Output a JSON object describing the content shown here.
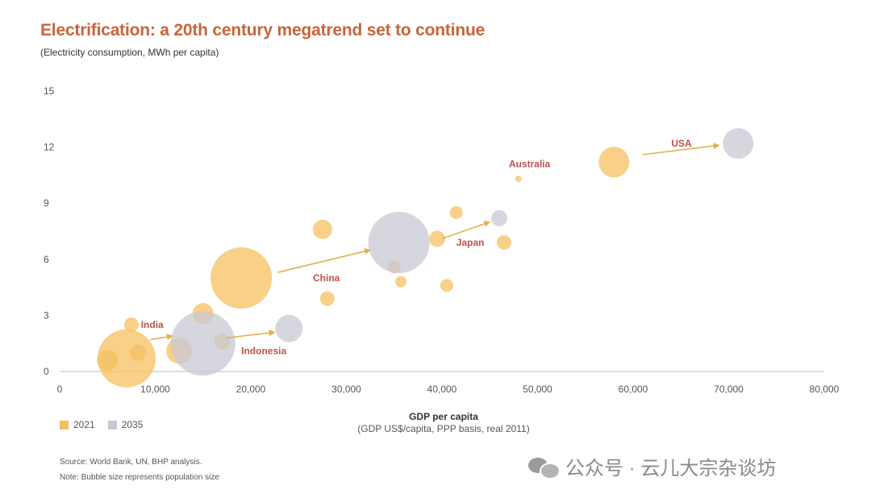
{
  "title": "Electrification: a 20th century megatrend set to continue",
  "subtitle": "(Electricity consumption, MWh per capita)",
  "x_axis_title": "GDP per capita",
  "x_axis_subtitle": "(GDP US$/capita, PPP basis, real 2011)",
  "legend": [
    {
      "label": "2021",
      "color": "#f5c060"
    },
    {
      "label": "2035",
      "color": "#c8c8d4"
    }
  ],
  "source": "Source: World Bank, UN, BHP analysis.",
  "note": "Note: Bubble size represents population size",
  "watermark": "公众号 · 云儿大宗杂谈坊",
  "colors": {
    "title": "#c8643a",
    "label": "#c0504d",
    "bubble_2021": "#f5c060",
    "bubble_2035": "#c8c8d4",
    "arrow": "#e3b14a",
    "axis": "#bbbbbb",
    "text": "#333333"
  },
  "chart_data": {
    "type": "scatter",
    "title": "Electrification: a 20th century megatrend set to continue",
    "ylabel": "(Electricity consumption, MWh per capita)",
    "xlabel": "GDP per capita",
    "xlim": [
      0,
      80000
    ],
    "ylim": [
      0,
      15
    ],
    "xticks": [
      0,
      10000,
      20000,
      30000,
      40000,
      50000,
      60000,
      70000,
      80000
    ],
    "xtick_labels": [
      "0",
      "10,000",
      "20,000",
      "30,000",
      "40,000",
      "50,000",
      "60,000",
      "70,000",
      "80,000"
    ],
    "yticks": [
      0,
      3,
      6,
      9,
      12,
      15
    ],
    "ytick_labels": [
      "0",
      "3",
      "6",
      "9",
      "12",
      "15"
    ],
    "grid": false,
    "size_meaning": "population (relative)",
    "series": [
      {
        "name": "2021",
        "color": "#f5c060",
        "points": [
          {
            "x": 7000,
            "y": 0.7,
            "size": 36
          },
          {
            "x": 5000,
            "y": 0.6,
            "size": 13
          },
          {
            "x": 7500,
            "y": 2.5,
            "size": 9
          },
          {
            "x": 8200,
            "y": 1.0,
            "size": 10
          },
          {
            "x": 12500,
            "y": 1.1,
            "size": 16
          },
          {
            "x": 15000,
            "y": 3.1,
            "size": 13
          },
          {
            "x": 17000,
            "y": 1.6,
            "size": 10
          },
          {
            "x": 19000,
            "y": 5.0,
            "size": 38
          },
          {
            "x": 27500,
            "y": 7.6,
            "size": 12
          },
          {
            "x": 28000,
            "y": 3.9,
            "size": 9
          },
          {
            "x": 35000,
            "y": 5.6,
            "size": 8
          },
          {
            "x": 35700,
            "y": 4.8,
            "size": 7
          },
          {
            "x": 39500,
            "y": 7.1,
            "size": 10
          },
          {
            "x": 40500,
            "y": 4.6,
            "size": 8
          },
          {
            "x": 41500,
            "y": 8.5,
            "size": 8
          },
          {
            "x": 46500,
            "y": 6.9,
            "size": 9
          },
          {
            "x": 48000,
            "y": 10.3,
            "size": 4
          },
          {
            "x": 58000,
            "y": 11.2,
            "size": 19
          }
        ]
      },
      {
        "name": "2035",
        "color": "#c8c8d4",
        "points": [
          {
            "x": 15000,
            "y": 1.5,
            "size": 40
          },
          {
            "x": 24000,
            "y": 2.3,
            "size": 17
          },
          {
            "x": 35500,
            "y": 6.9,
            "size": 38
          },
          {
            "x": 46000,
            "y": 8.2,
            "size": 10
          },
          {
            "x": 71000,
            "y": 12.2,
            "size": 19
          }
        ]
      }
    ],
    "annotations": [
      {
        "text": "India",
        "x": 8500,
        "y": 2.5
      },
      {
        "text": "Indonesia",
        "x": 19000,
        "y": 1.1
      },
      {
        "text": "China",
        "x": 26500,
        "y": 5.0
      },
      {
        "text": "Japan",
        "x": 41500,
        "y": 6.9
      },
      {
        "text": "Australia",
        "x": 47000,
        "y": 11.1
      },
      {
        "text": "USA",
        "x": 64000,
        "y": 12.2
      }
    ],
    "arrows": [
      {
        "from": [
          9500,
          1.7
        ],
        "to": [
          11800,
          1.9
        ]
      },
      {
        "from": [
          17500,
          1.8
        ],
        "to": [
          22500,
          2.1
        ]
      },
      {
        "from": [
          22800,
          5.3
        ],
        "to": [
          32500,
          6.5
        ]
      },
      {
        "from": [
          40000,
          7.1
        ],
        "to": [
          45000,
          8.0
        ]
      },
      {
        "from": [
          61000,
          11.6
        ],
        "to": [
          69000,
          12.1
        ]
      }
    ]
  }
}
